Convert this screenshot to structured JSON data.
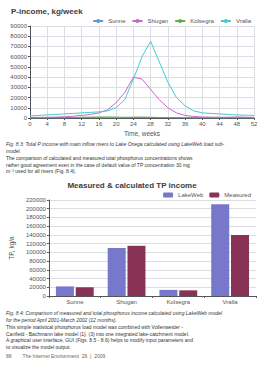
{
  "chart_data": [
    {
      "type": "line",
      "title": "P-income, kg/week",
      "xlabel": "Time, weeks",
      "x": [
        0,
        2,
        4,
        6,
        8,
        10,
        12,
        14,
        16,
        18,
        20,
        22,
        24,
        26,
        28,
        30,
        32,
        34,
        36,
        38,
        40,
        42,
        44,
        46,
        48,
        50,
        52
      ],
      "series": [
        {
          "name": "Sunne",
          "color": "#6699cc",
          "values": [
            200,
            200,
            200,
            250,
            300,
            350,
            400,
            400,
            350,
            300,
            250,
            300,
            500,
            600,
            500,
            400,
            350,
            300,
            250,
            200,
            200,
            200,
            200,
            250,
            300,
            250,
            200
          ]
        },
        {
          "name": "Shugan",
          "color": "#cc66cc",
          "values": [
            500,
            600,
            700,
            900,
            1200,
            1800,
            2500,
            3500,
            5000,
            8000,
            15000,
            25000,
            40000,
            38000,
            28000,
            18000,
            10000,
            5000,
            2500,
            1500,
            1000,
            800,
            700,
            800,
            1000,
            800,
            600
          ]
        },
        {
          "name": "Kolsegra",
          "color": "#66aa44",
          "values": [
            200,
            200,
            250,
            300,
            350,
            500,
            700,
            900,
            1000,
            1000,
            900,
            700,
            800,
            900,
            700,
            500,
            400,
            300,
            250,
            200,
            200,
            200,
            200,
            200,
            250,
            200,
            200
          ]
        },
        {
          "name": "Vralla",
          "color": "#44cccc",
          "values": [
            2000,
            2500,
            3000,
            3500,
            4000,
            4500,
            5000,
            5500,
            6000,
            7000,
            10000,
            18000,
            38000,
            60000,
            75000,
            55000,
            35000,
            20000,
            12000,
            7000,
            5000,
            4500,
            4000,
            3500,
            3000,
            2800,
            2500
          ]
        }
      ],
      "xlim": [
        0,
        52
      ],
      "xticks": [
        0,
        4,
        8,
        12,
        16,
        20,
        24,
        28,
        32,
        36,
        40,
        44,
        48,
        52
      ],
      "ylim": [
        0,
        90000
      ],
      "yticks": [
        0,
        10000,
        20000,
        30000,
        40000,
        50000,
        60000,
        70000,
        80000,
        90000
      ],
      "grid": true,
      "legend": "upper right",
      "annotations": [
        "Fig. 8.3: Total P income with main inflow rivers to Lake Onega calculated using LakeWeb load sub-\nmodel.",
        "The comparison of calculated and measured total phosphorus concentrations shows\nrather good agreement even in the case of default value of TP concentration 30 mg\nm⁻³ used for all rivers (Fig. 8.4)."
      ]
    },
    {
      "type": "bar",
      "title": "Measured & calculated TP income",
      "ylabel": "TP, kg/a",
      "categories": [
        "Sunne",
        "Shugan",
        "Kolsegra",
        "Vralla"
      ],
      "series": [
        {
          "name": "LakeWeb",
          "color": "#7777cc",
          "values": [
            22000,
            110000,
            14000,
            210000
          ]
        },
        {
          "name": "Measured",
          "color": "#883355",
          "values": [
            20000,
            115000,
            13000,
            140000
          ]
        }
      ],
      "ylim": [
        0,
        220000
      ],
      "yticks": [
        0,
        20000,
        40000,
        60000,
        80000,
        100000,
        120000,
        140000,
        160000,
        180000,
        200000,
        220000
      ],
      "grid": "y",
      "legend": "upper right",
      "annotations": [
        "Fig. 8.4: Comparison of measured and total phosphorus income calculated using LakeWeb model\nfor the period April 2001-March 2002 (12 months).",
        "This simple statistical phosphorus load model was combined with Vollenweider -\nCanfield - Bachmann lake model (1), (3) into one integrated lake-catchment model.\nA graphical user interface, GUI (Figs. 8.5 - 8.6) helps to modify input parameters and\nto visualize the model output.",
        "88        The Internet Environment  26  |  2009"
      ]
    }
  ]
}
